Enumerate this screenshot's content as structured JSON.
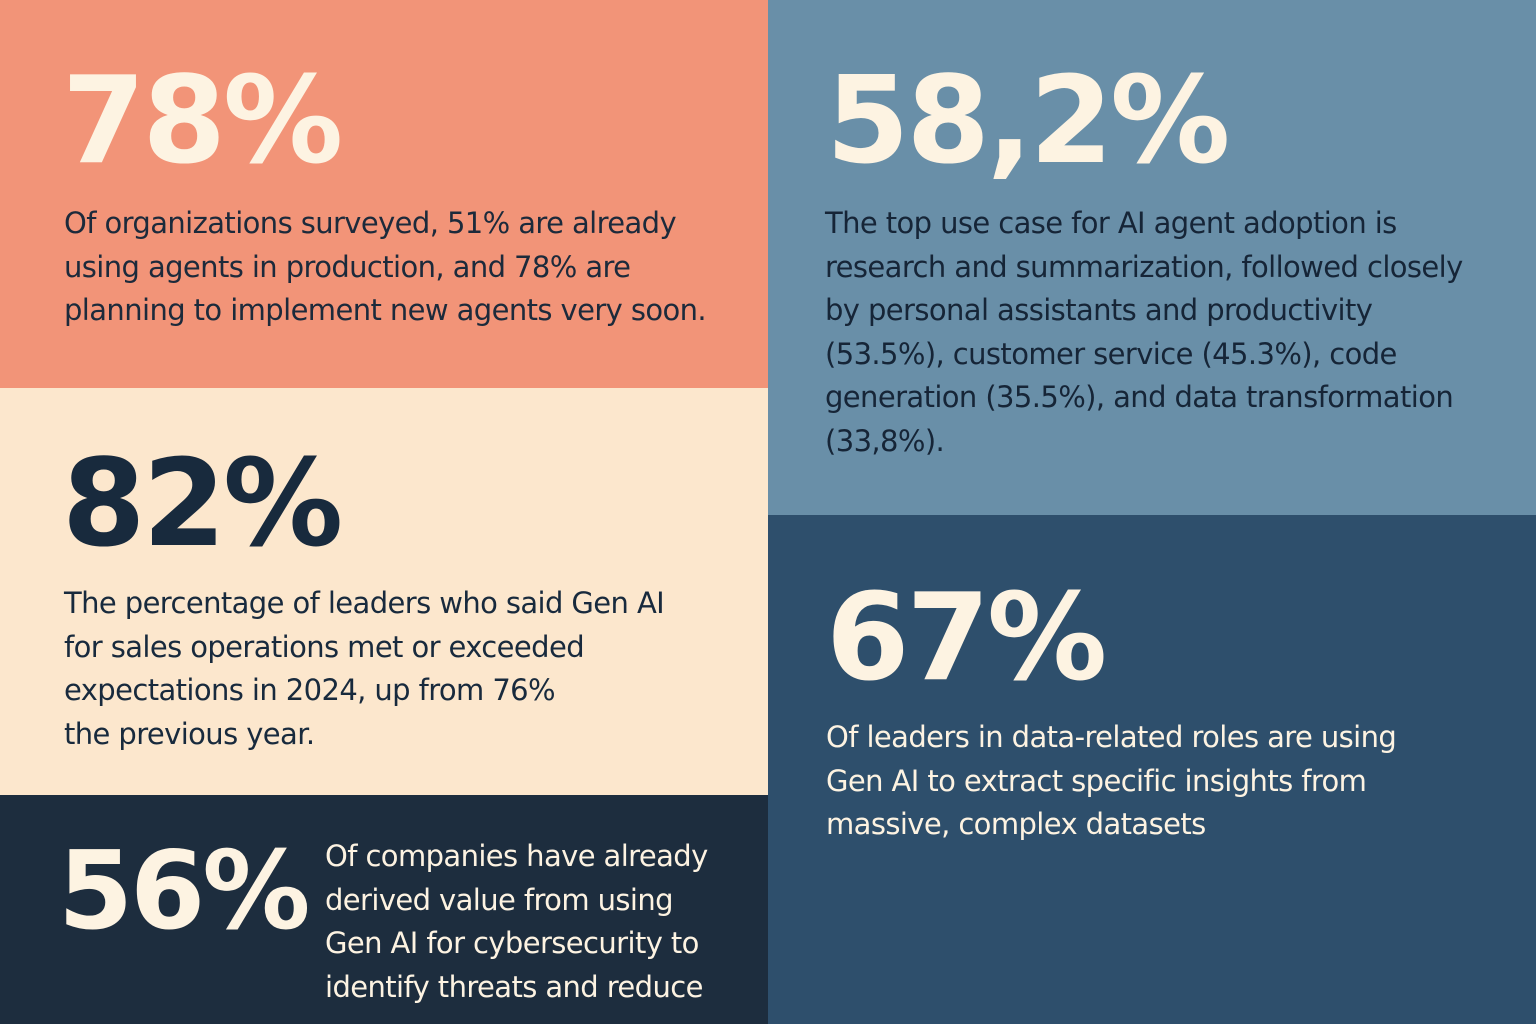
{
  "colors": {
    "coral": "#f29478",
    "muted_blue": "#698fa8",
    "cream": "#fce7cd",
    "deep_blue": "#2e4f6c",
    "navy": "#1d2d3e",
    "light_text": "#fdf3e2",
    "dark_text": "#182a3d"
  },
  "panels": [
    {
      "stat": "78%",
      "lines": [
        "Of organizations surveyed, 51% are already",
        "using agents in production, and 78% are",
        "planning to implement new agents very soon."
      ]
    },
    {
      "stat": "58,2%",
      "lines": [
        "The top use case for AI agent adoption is",
        "research and summarization, followed closely",
        "by personal assistants and productivity",
        "(53.5%), customer service (45.3%), code",
        "generation (35.5%), and data transformation",
        "(33,8%)."
      ]
    },
    {
      "stat": "82%",
      "lines": [
        "The percentage of leaders who said Gen AI",
        "for sales operations met or exceeded",
        "expectations in 2024, up from 76%",
        "the previous year."
      ]
    },
    {
      "stat": "67%",
      "lines": [
        "Of leaders in data-related roles are using",
        "Gen AI to extract specific insights from",
        "massive, complex datasets"
      ]
    },
    {
      "stat": "56%",
      "lines": [
        "Of companies have already",
        "derived value from using",
        "Gen AI for cybersecurity to",
        "identify threats and reduce"
      ]
    }
  ]
}
